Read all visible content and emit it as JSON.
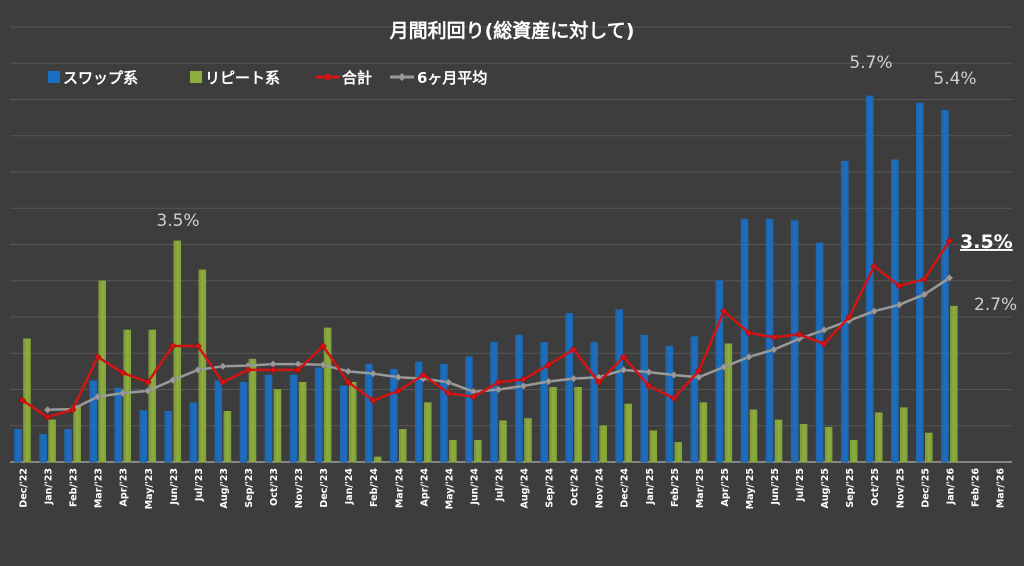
{
  "chart_data": {
    "type": "bar",
    "title": "月間利回り(総資産に対して)",
    "categories": [
      "Dec/'22",
      "Jan/'23",
      "Feb/'23",
      "Mar/'23",
      "Apr/'23",
      "May/'23",
      "Jun/'23",
      "Jul/'23",
      "Aug/'23",
      "Sep/'23",
      "Oct/'23",
      "Nov/'23",
      "Dec/'23",
      "Jan/'24",
      "Feb/'24",
      "Mar/'24",
      "Apr/'24",
      "May/'24",
      "Jun/'24",
      "Jul/'24",
      "Aug/'24",
      "Sep/'24",
      "Oct/'24",
      "Nov/'24",
      "Dec/'24",
      "Jan/'25",
      "Feb/'25",
      "Mar/'25",
      "Apr/'25",
      "May/'25",
      "Jun/'25",
      "Jul/'25",
      "Aug/'25",
      "Sep/'25",
      "Oct/'25",
      "Nov/'25",
      "Dec/'25",
      "Jan/'26",
      "Feb/'26",
      "Mar/'26"
    ],
    "ylim": [
      0,
      6.0
    ],
    "grid": true,
    "legend": "top-left",
    "series": [
      {
        "name": "スワップ系",
        "kind": "bar",
        "color": "#1a6fc4",
        "values": [
          0.45,
          0.38,
          0.45,
          1.12,
          1.02,
          0.71,
          0.7,
          0.82,
          1.12,
          1.1,
          1.2,
          1.2,
          1.3,
          1.05,
          1.35,
          1.28,
          1.38,
          1.35,
          1.45,
          1.65,
          1.75,
          1.65,
          2.05,
          1.65,
          2.1,
          1.75,
          1.6,
          1.73,
          2.5,
          3.35,
          3.35,
          3.33,
          3.02,
          4.15,
          5.05,
          4.17,
          4.95,
          4.85,
          null,
          null
        ]
      },
      {
        "name": "リピート系",
        "kind": "bar",
        "color": "#8caf3c",
        "values": [
          1.7,
          0.58,
          0.78,
          2.5,
          1.82,
          1.82,
          3.05,
          2.65,
          0.7,
          1.42,
          1.0,
          1.1,
          1.85,
          1.1,
          0.07,
          0.45,
          0.82,
          0.3,
          0.3,
          0.57,
          0.6,
          1.03,
          1.03,
          0.5,
          0.8,
          0.43,
          0.27,
          0.82,
          1.63,
          0.72,
          0.58,
          0.52,
          0.48,
          0.3,
          0.68,
          0.75,
          0.4,
          2.15,
          null,
          null
        ]
      },
      {
        "name": "合計",
        "kind": "line",
        "color": "#d21414",
        "values": [
          0.85,
          0.62,
          0.72,
          1.45,
          1.23,
          1.1,
          1.6,
          1.6,
          1.1,
          1.27,
          1.27,
          1.27,
          1.6,
          1.1,
          0.85,
          0.98,
          1.2,
          0.95,
          0.9,
          1.1,
          1.14,
          1.34,
          1.55,
          1.1,
          1.45,
          1.05,
          0.88,
          1.26,
          2.08,
          1.78,
          1.72,
          1.76,
          1.63,
          2.0,
          2.7,
          2.43,
          2.52,
          3.05,
          null,
          null
        ]
      },
      {
        "name": "6ヶ月平均",
        "kind": "line",
        "color": "#9a9a9a",
        "values": [
          null,
          0.72,
          0.73,
          0.9,
          0.95,
          0.98,
          1.13,
          1.27,
          1.32,
          1.33,
          1.35,
          1.35,
          1.34,
          1.25,
          1.22,
          1.17,
          1.15,
          1.1,
          0.97,
          1.0,
          1.05,
          1.11,
          1.15,
          1.17,
          1.27,
          1.24,
          1.2,
          1.17,
          1.31,
          1.45,
          1.55,
          1.7,
          1.82,
          1.95,
          2.08,
          2.17,
          2.31,
          2.54,
          null,
          null
        ]
      }
    ],
    "annotations": [
      "3.5%",
      "5.7%",
      "5.4%",
      "3.5%",
      "2.7%"
    ]
  }
}
